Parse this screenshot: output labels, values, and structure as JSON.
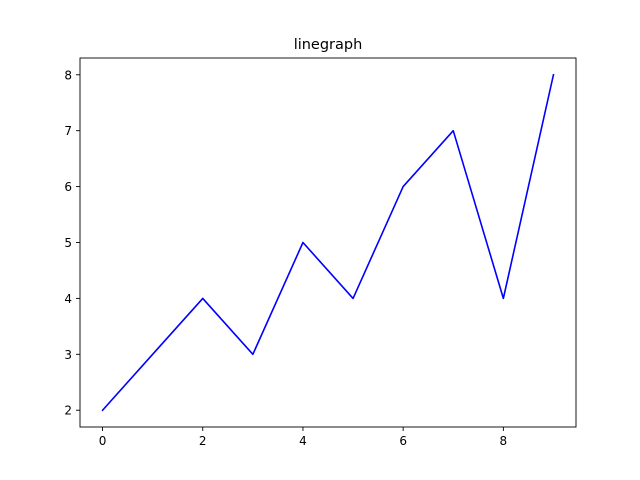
{
  "chart_data": {
    "type": "line",
    "title": "linegraph",
    "xlabel": "",
    "ylabel": "",
    "x": [
      0,
      1,
      2,
      3,
      4,
      5,
      6,
      7,
      8,
      9
    ],
    "series": [
      {
        "values": [
          2,
          3,
          4,
          3,
          5,
          4,
          6,
          7,
          4,
          8
        ],
        "color": "#0000ff"
      }
    ],
    "xlim": [
      -0.45,
      9.45
    ],
    "ylim": [
      1.7,
      8.3
    ],
    "xticks": [
      0,
      2,
      4,
      6,
      8
    ],
    "yticks": [
      2,
      3,
      4,
      5,
      6,
      7,
      8
    ],
    "xtick_labels": [
      "0",
      "2",
      "4",
      "6",
      "8"
    ],
    "ytick_labels": [
      "2",
      "3",
      "4",
      "5",
      "6",
      "7",
      "8"
    ],
    "grid": false,
    "legend": false
  }
}
